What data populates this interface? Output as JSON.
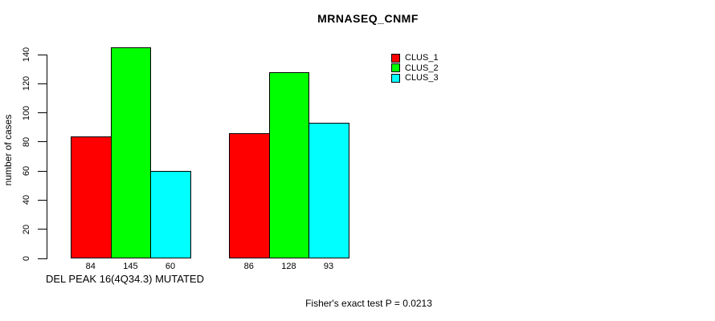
{
  "chart_data": {
    "type": "bar",
    "title": "MRNASEQ_CNMF",
    "ylabel": "number of cases",
    "xlabel": "DEL PEAK 16(4Q34.3) MUTATED",
    "footnote": "Fisher's exact test P = 0.0213",
    "grid": false,
    "legend_position": "top-right",
    "yticks": [
      0,
      20,
      40,
      60,
      80,
      100,
      120,
      140
    ],
    "ylim": [
      0,
      145
    ],
    "group_count": 2,
    "series": [
      {
        "name": "CLUS_1",
        "color": "#ff0000",
        "values": [
          84,
          86
        ]
      },
      {
        "name": "CLUS_2",
        "color": "#00ff00",
        "values": [
          145,
          128
        ]
      },
      {
        "name": "CLUS_3",
        "color": "#00ffff",
        "values": [
          60,
          93
        ]
      }
    ],
    "bar_value_labels": [
      [
        84,
        145,
        60
      ],
      [
        86,
        128,
        93
      ]
    ]
  }
}
